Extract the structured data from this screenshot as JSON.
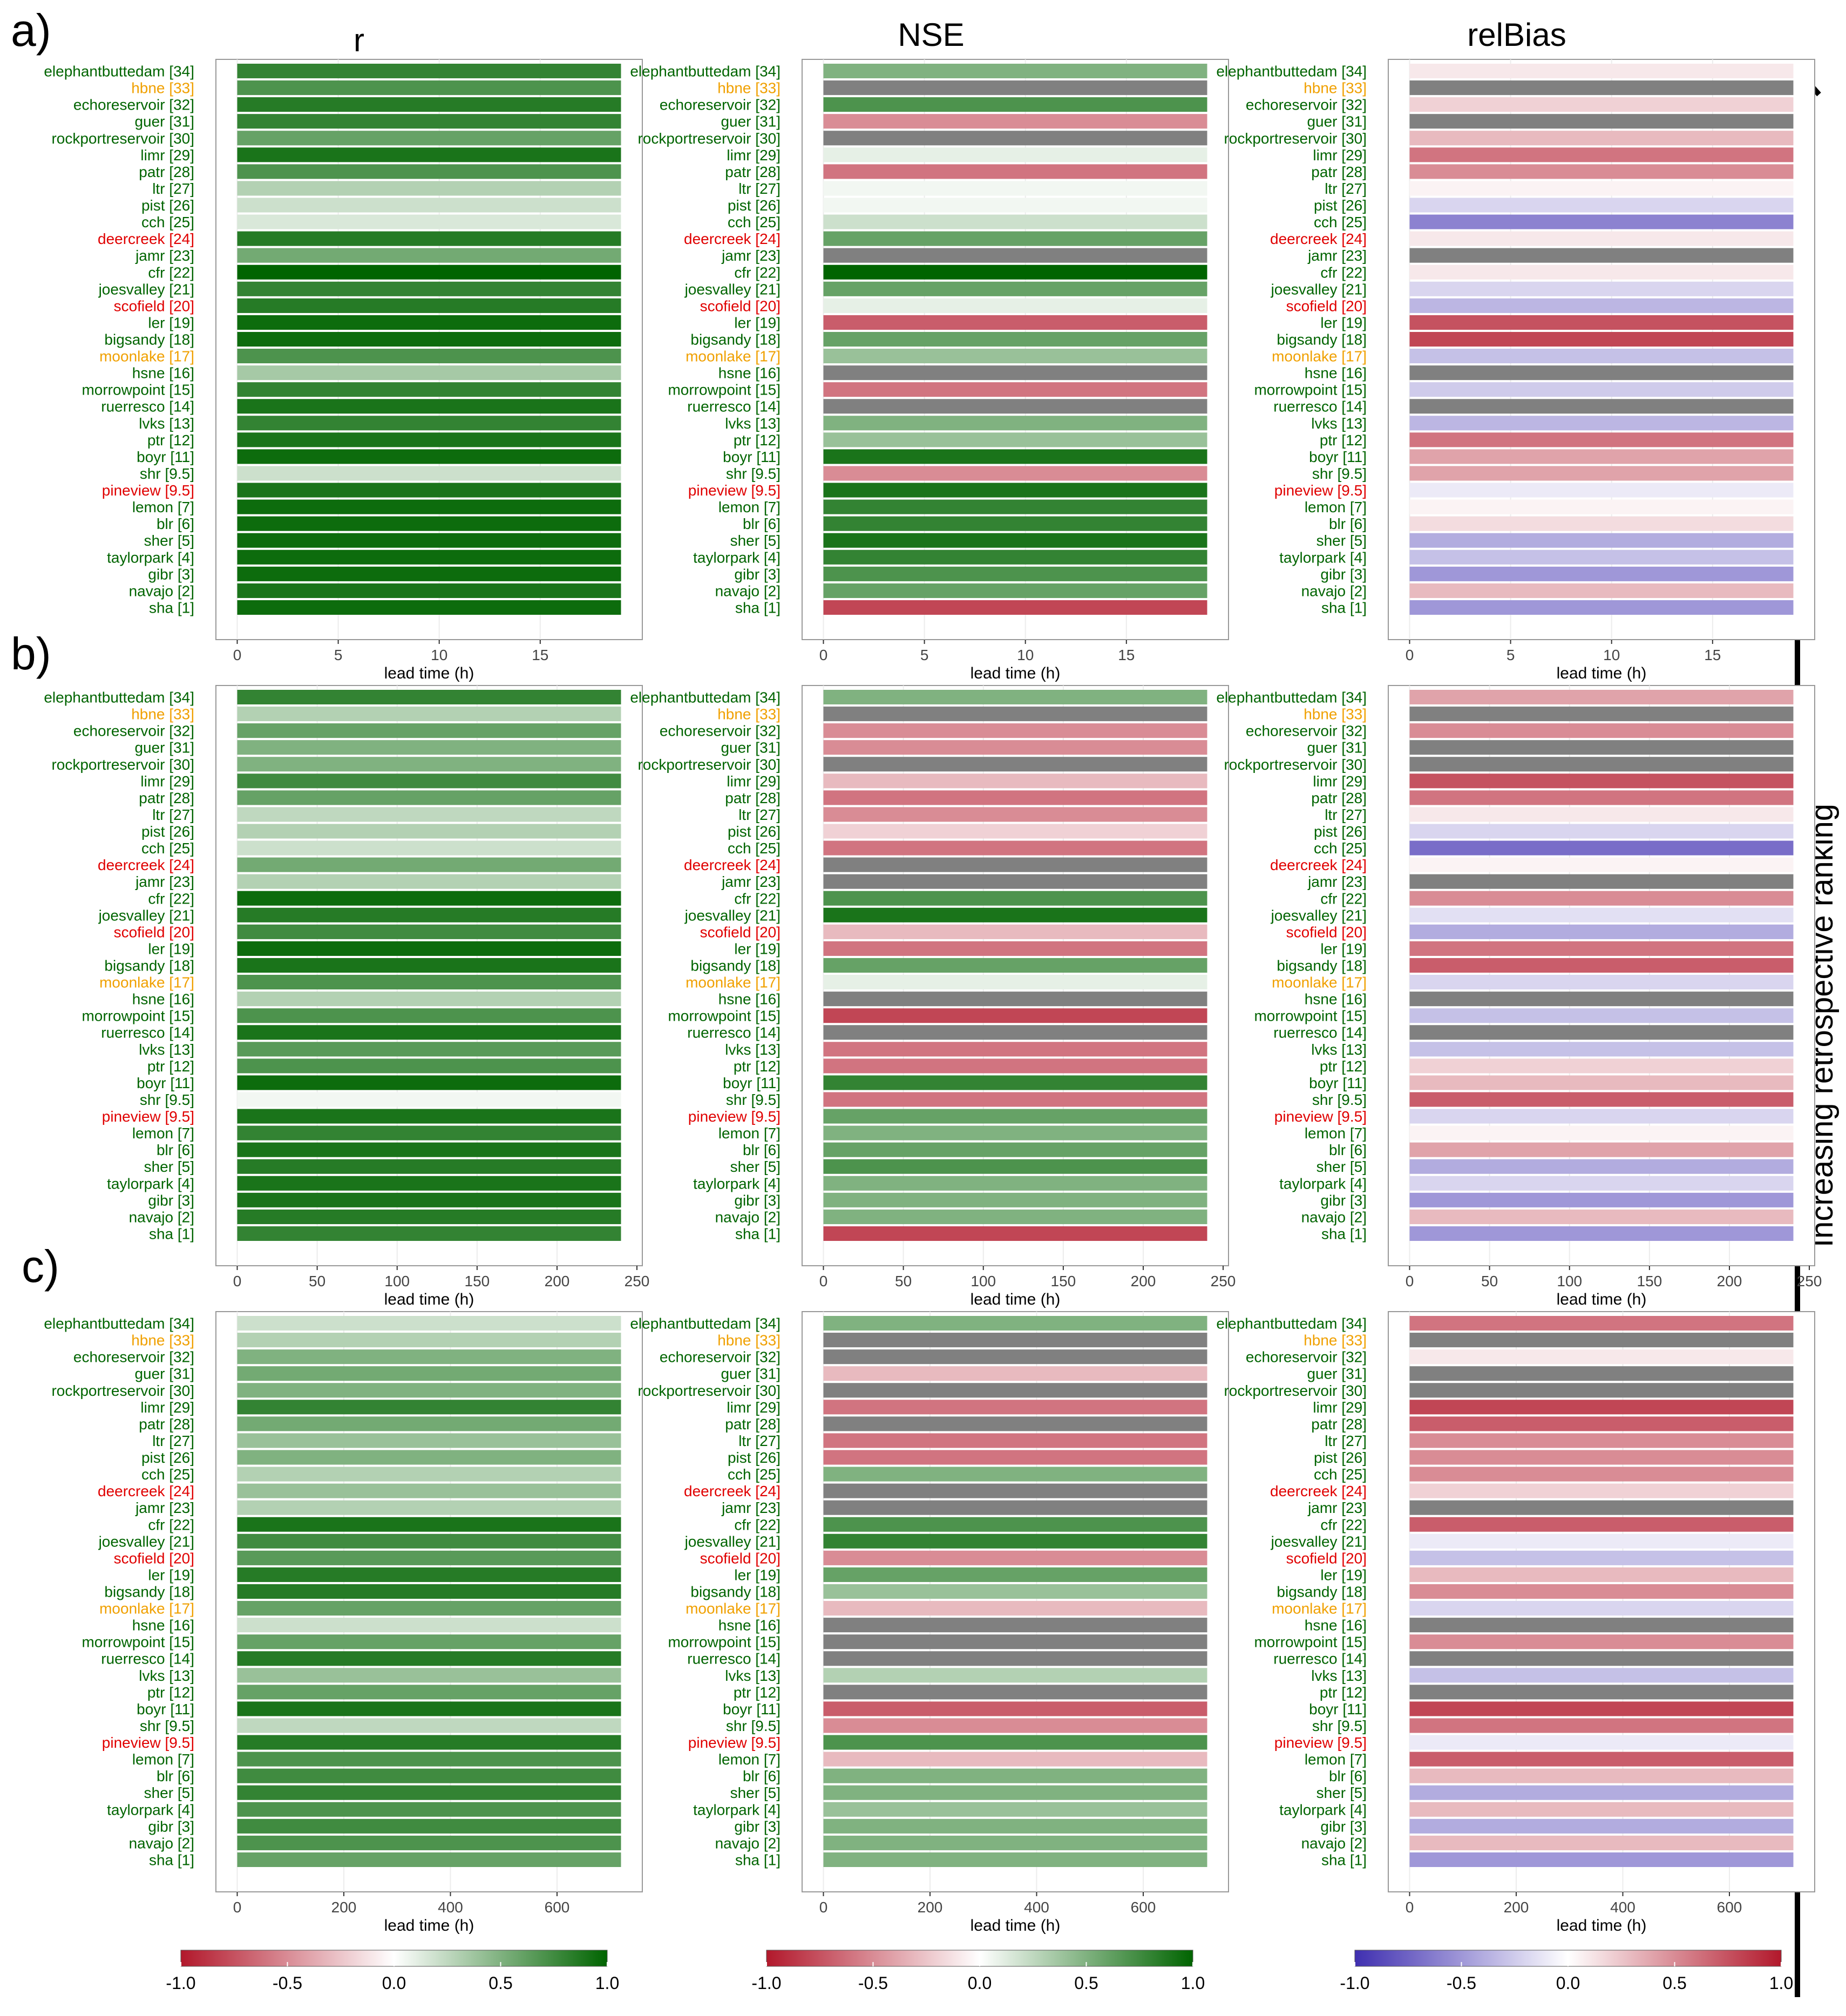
{
  "column_titles": [
    "r",
    "NSE",
    "relBias"
  ],
  "panel_labels": [
    "a)",
    "b)",
    "c)"
  ],
  "side_label": "Increasing retrospective ranking",
  "x_axis_label": "lead time (h)",
  "status_colors": {
    "green": "#006400",
    "orange": "#f0a000",
    "red": "#e00000"
  },
  "stations": [
    {
      "label": "elephantbuttedam [34]",
      "status": "green"
    },
    {
      "label": "hbne [33]",
      "status": "orange"
    },
    {
      "label": "echoreservoir [32]",
      "status": "green"
    },
    {
      "label": "guer [31]",
      "status": "green"
    },
    {
      "label": "rockportreservoir [30]",
      "status": "green"
    },
    {
      "label": "limr [29]",
      "status": "green"
    },
    {
      "label": "patr [28]",
      "status": "green"
    },
    {
      "label": "ltr [27]",
      "status": "green"
    },
    {
      "label": "pist [26]",
      "status": "green"
    },
    {
      "label": "cch [25]",
      "status": "green"
    },
    {
      "label": "deercreek [24]",
      "status": "red"
    },
    {
      "label": "jamr [23]",
      "status": "green"
    },
    {
      "label": "cfr [22]",
      "status": "green"
    },
    {
      "label": "joesvalley [21]",
      "status": "green"
    },
    {
      "label": "scofield [20]",
      "status": "red"
    },
    {
      "label": "ler [19]",
      "status": "green"
    },
    {
      "label": "bigsandy [18]",
      "status": "green"
    },
    {
      "label": "moonlake [17]",
      "status": "orange"
    },
    {
      "label": "hsne [16]",
      "status": "green"
    },
    {
      "label": "morrowpoint [15]",
      "status": "green"
    },
    {
      "label": "ruerresco [14]",
      "status": "green"
    },
    {
      "label": "lvks [13]",
      "status": "green"
    },
    {
      "label": "ptr [12]",
      "status": "green"
    },
    {
      "label": "boyr [11]",
      "status": "green"
    },
    {
      "label": "shr [9.5]",
      "status": "green"
    },
    {
      "label": "pineview [9.5]",
      "status": "red"
    },
    {
      "label": "lemon [7]",
      "status": "green"
    },
    {
      "label": "blr [6]",
      "status": "green"
    },
    {
      "label": "sher [5]",
      "status": "green"
    },
    {
      "label": "taylorpark [4]",
      "status": "green"
    },
    {
      "label": "gibr [3]",
      "status": "green"
    },
    {
      "label": "navajo [2]",
      "status": "green"
    },
    {
      "label": "sha [1]",
      "status": "green"
    }
  ],
  "chart_data": {
    "type": "heatmap",
    "rows": "stations",
    "panels": [
      {
        "label": "a)",
        "xlim": [
          0,
          19
        ],
        "ticks": [
          0,
          5,
          10,
          15
        ],
        "metrics": {
          "r": [
            0.8,
            0.7,
            0.85,
            0.8,
            0.6,
            0.9,
            0.7,
            0.3,
            0.2,
            0.15,
            0.85,
            0.55,
            1.0,
            0.8,
            0.85,
            0.95,
            0.95,
            0.7,
            0.35,
            0.8,
            0.9,
            0.8,
            0.9,
            0.95,
            0.2,
            0.9,
            0.95,
            0.95,
            0.95,
            0.95,
            0.95,
            0.9,
            0.95
          ],
          "NSE": [
            0.5,
            null,
            0.7,
            -0.5,
            null,
            0.1,
            -0.6,
            0.05,
            0.05,
            0.2,
            0.6,
            null,
            1.0,
            0.6,
            0.1,
            -0.7,
            0.6,
            0.4,
            null,
            -0.6,
            null,
            0.5,
            0.4,
            0.9,
            -0.5,
            0.9,
            0.8,
            0.8,
            0.9,
            0.8,
            0.7,
            0.6,
            -0.8
          ],
          "relBias": [
            0.1,
            null,
            0.2,
            null,
            0.3,
            0.6,
            0.5,
            0.05,
            -0.2,
            -0.6,
            0.1,
            null,
            0.1,
            -0.2,
            -0.35,
            0.75,
            0.8,
            -0.3,
            null,
            -0.25,
            null,
            -0.35,
            0.6,
            0.4,
            0.4,
            -0.1,
            0.05,
            0.15,
            -0.4,
            -0.3,
            -0.5,
            0.3,
            -0.5
          ]
        }
      },
      {
        "label": "b)",
        "xlim": [
          0,
          240
        ],
        "ticks": [
          0,
          50,
          100,
          150,
          200,
          250
        ],
        "metrics": {
          "r": [
            0.8,
            0.3,
            0.6,
            0.5,
            0.5,
            0.75,
            0.6,
            0.25,
            0.3,
            0.2,
            0.55,
            0.3,
            0.95,
            0.85,
            0.75,
            0.95,
            0.9,
            0.7,
            0.3,
            0.7,
            0.9,
            0.65,
            0.7,
            0.95,
            0.05,
            0.9,
            0.8,
            0.9,
            0.85,
            0.9,
            0.9,
            0.85,
            0.8
          ],
          "NSE": [
            0.5,
            null,
            -0.5,
            -0.5,
            null,
            -0.3,
            -0.6,
            -0.5,
            -0.2,
            -0.6,
            null,
            null,
            0.7,
            0.9,
            -0.3,
            -0.6,
            0.6,
            0.1,
            null,
            -0.8,
            null,
            -0.6,
            -0.6,
            0.8,
            -0.6,
            0.6,
            0.5,
            0.6,
            0.7,
            0.5,
            0.5,
            0.5,
            -0.8
          ],
          "relBias": [
            0.4,
            null,
            0.5,
            null,
            null,
            0.75,
            0.6,
            0.1,
            -0.2,
            -0.7,
            0.05,
            null,
            0.5,
            -0.15,
            -0.4,
            0.6,
            0.7,
            -0.2,
            null,
            -0.3,
            null,
            -0.3,
            0.2,
            0.3,
            0.7,
            -0.2,
            0.05,
            0.4,
            -0.4,
            -0.2,
            -0.5,
            0.3,
            -0.5
          ]
        }
      },
      {
        "label": "c)",
        "xlim": [
          0,
          720
        ],
        "ticks": [
          0,
          200,
          400,
          600
        ],
        "metrics": {
          "r": [
            0.2,
            0.3,
            0.5,
            0.55,
            0.5,
            0.8,
            0.55,
            0.4,
            0.5,
            0.3,
            0.4,
            0.3,
            0.9,
            0.75,
            0.65,
            0.85,
            0.85,
            0.6,
            0.2,
            0.6,
            0.85,
            0.4,
            0.6,
            0.9,
            0.25,
            0.85,
            0.7,
            0.75,
            0.8,
            0.7,
            0.75,
            0.7,
            0.6
          ],
          "NSE": [
            0.5,
            null,
            null,
            -0.3,
            null,
            -0.6,
            null,
            -0.6,
            -0.6,
            0.5,
            null,
            null,
            0.7,
            0.8,
            -0.5,
            0.6,
            0.4,
            -0.3,
            null,
            null,
            null,
            0.3,
            null,
            -0.7,
            -0.5,
            0.7,
            -0.3,
            0.5,
            0.5,
            0.4,
            0.5,
            0.5,
            0.5
          ],
          "relBias": [
            0.6,
            null,
            0.1,
            null,
            null,
            0.8,
            0.7,
            0.5,
            0.5,
            0.5,
            0.2,
            null,
            0.7,
            -0.1,
            -0.3,
            0.3,
            0.5,
            -0.2,
            null,
            0.5,
            null,
            -0.3,
            null,
            0.8,
            0.6,
            -0.1,
            0.7,
            0.3,
            -0.4,
            0.3,
            -0.4,
            0.3,
            -0.5
          ]
        }
      }
    ],
    "colorbars": [
      {
        "metric": "r",
        "scale": "red-white-green",
        "range": [
          -1.0,
          1.0
        ],
        "ticks": [
          "-1.0",
          "-0.5",
          "0.0",
          "0.5",
          "1.0"
        ]
      },
      {
        "metric": "NSE",
        "scale": "red-white-green",
        "range": [
          -1.0,
          1.0
        ],
        "ticks": [
          "-1.0",
          "-0.5",
          "0.0",
          "0.5",
          "1.0"
        ]
      },
      {
        "metric": "relBias",
        "scale": "blue-white-red",
        "range": [
          -1.0,
          1.0
        ],
        "ticks": [
          "-1.0",
          "-0.5",
          "0.0",
          "0.5",
          "1.0"
        ]
      }
    ],
    "missing_color": "#808080"
  }
}
